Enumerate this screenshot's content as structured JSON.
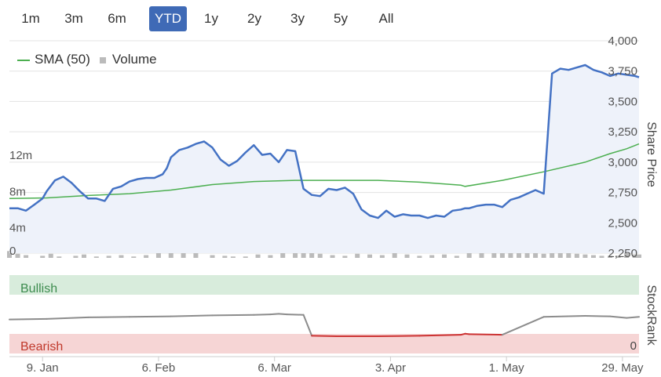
{
  "range_buttons": [
    {
      "label": "1m",
      "active": false
    },
    {
      "label": "3m",
      "active": false
    },
    {
      "label": "6m",
      "active": false
    },
    {
      "label": "YTD",
      "active": true
    },
    {
      "label": "1y",
      "active": false
    },
    {
      "label": "2y",
      "active": false
    },
    {
      "label": "3y",
      "active": false
    },
    {
      "label": "5y",
      "active": false
    },
    {
      "label": "All",
      "active": false
    }
  ],
  "legend": {
    "sma_label": "SMA (50)",
    "volume_label": "Volume"
  },
  "chart_data": {
    "type": "line",
    "ylabel": "Share Price",
    "y_ticks": [
      "4,000",
      "3,750",
      "3,500",
      "3,250",
      "3,000",
      "2,750",
      "2,500",
      "2,250"
    ],
    "ylim": [
      2250,
      4000
    ],
    "volume_ticks": [
      "12m",
      "8m",
      "4m",
      "0"
    ],
    "volume_ylim": [
      0,
      16
    ],
    "x_ticks": [
      "9. Jan",
      "6. Feb",
      "6. Mar",
      "3. Apr",
      "1. May",
      "29. May"
    ],
    "x_tick_days": [
      9,
      37,
      65,
      93,
      121,
      149
    ],
    "xlim": [
      1,
      153
    ],
    "colors": {
      "price": "#4472c4",
      "sma": "#4caf50",
      "volume": "#bbbbbb",
      "stockrank": "#8c8c8c",
      "bearish_line": "#cc3333"
    },
    "series": [
      {
        "name": "price",
        "x": [
          1,
          3,
          5,
          7,
          9,
          10,
          12,
          14,
          16,
          18,
          20,
          22,
          24,
          26,
          28,
          30,
          32,
          34,
          36,
          38,
          39,
          40,
          42,
          44,
          46,
          48,
          50,
          52,
          54,
          56,
          58,
          60,
          62,
          64,
          66,
          68,
          70,
          72,
          74,
          76,
          78,
          80,
          82,
          84,
          86,
          88,
          90,
          92,
          94,
          96,
          98,
          100,
          102,
          104,
          106,
          108,
          110,
          111,
          112,
          114,
          116,
          118,
          120,
          122,
          124,
          126,
          128,
          130,
          132,
          134,
          136,
          138,
          140,
          142,
          144,
          146,
          148,
          150,
          152,
          153
        ],
        "y": [
          2620,
          2620,
          2600,
          2650,
          2700,
          2760,
          2850,
          2880,
          2830,
          2760,
          2700,
          2700,
          2680,
          2780,
          2800,
          2840,
          2860,
          2870,
          2870,
          2900,
          2950,
          3040,
          3100,
          3120,
          3150,
          3170,
          3120,
          3020,
          2970,
          3010,
          3080,
          3140,
          3060,
          3070,
          3000,
          3100,
          3090,
          2780,
          2730,
          2720,
          2780,
          2770,
          2790,
          2740,
          2610,
          2560,
          2540,
          2600,
          2550,
          2570,
          2560,
          2560,
          2540,
          2560,
          2550,
          2600,
          2610,
          2620,
          2620,
          2640,
          2650,
          2650,
          2630,
          2690,
          2710,
          2740,
          2770,
          2740,
          3730,
          3770,
          3760,
          3780,
          3800,
          3760,
          3740,
          3710,
          3730,
          3720,
          3710,
          3700
        ]
      },
      {
        "name": "SMA (50)",
        "x": [
          1,
          10,
          20,
          30,
          40,
          50,
          60,
          70,
          80,
          90,
          100,
          110,
          111,
          120,
          130,
          140,
          146,
          150,
          153
        ],
        "y": [
          2700,
          2705,
          2725,
          2740,
          2770,
          2815,
          2840,
          2850,
          2850,
          2850,
          2835,
          2810,
          2800,
          2850,
          2920,
          3000,
          3070,
          3110,
          3150
        ]
      },
      {
        "name": "Volume",
        "x": [
          1,
          3,
          5,
          9,
          11,
          13,
          17,
          19,
          22,
          25,
          28,
          31,
          34,
          37,
          40,
          43,
          46,
          50,
          53,
          55,
          58,
          61,
          64,
          67,
          70,
          72,
          74,
          76,
          79,
          82,
          85,
          88,
          91,
          94,
          97,
          100,
          103,
          106,
          109,
          112,
          115,
          118,
          120,
          122,
          124,
          126,
          128,
          130,
          132,
          134,
          136,
          138,
          140,
          142,
          144,
          146,
          148,
          150,
          152,
          153
        ],
        "y": [
          1.0,
          0.6,
          0.4,
          0.3,
          0.6,
          0.2,
          0.3,
          0.5,
          0.2,
          0.3,
          0.4,
          0.2,
          0.4,
          1.0,
          1.2,
          0.8,
          0.9,
          0.4,
          0.3,
          0.2,
          0.2,
          0.5,
          0.4,
          2.0,
          3.0,
          3.4,
          1.0,
          0.6,
          0.4,
          0.3,
          0.6,
          0.5,
          0.4,
          0.7,
          0.5,
          0.3,
          0.4,
          0.5,
          0.3,
          1.2,
          1.8,
          2.0,
          4.8,
          2.2,
          1.6,
          1.2,
          0.8,
          0.6,
          1.0,
          1.2,
          0.8,
          0.6,
          0.5,
          0.4,
          0.3,
          0.3,
          0.3,
          0.7,
          0.5,
          0.5
        ]
      }
    ],
    "stockrank_panel": {
      "label": "StockRank",
      "bullish_label": "Bullish",
      "bearish_label": "Bearish",
      "zero_label": "0",
      "x": [
        1,
        10,
        20,
        30,
        40,
        50,
        60,
        64,
        66,
        68,
        72,
        74,
        80,
        90,
        100,
        110,
        111,
        112,
        120,
        130,
        140,
        146,
        150,
        153
      ],
      "y": [
        0.33,
        0.34,
        0.37,
        0.38,
        0.39,
        0.41,
        0.42,
        0.43,
        0.44,
        0.43,
        0.42,
        0.01,
        0.0,
        0.0,
        0.01,
        0.03,
        0.05,
        0.04,
        0.03,
        0.38,
        0.4,
        0.39,
        0.36,
        0.38
      ]
    }
  }
}
